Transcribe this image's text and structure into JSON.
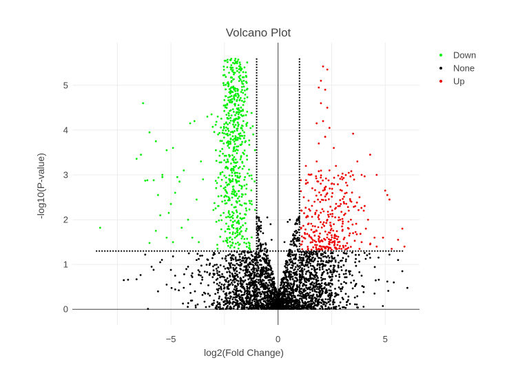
{
  "chart_data": {
    "type": "scatter",
    "title": "Volcano Plot",
    "xlabel": "log2(Fold Change)",
    "ylabel": "-log10(P-value)",
    "xlim": [
      -9.6,
      6.6
    ],
    "ylim": [
      -0.35,
      5.95
    ],
    "xticks": [
      -5,
      0,
      5
    ],
    "xtick_labels": [
      "−5",
      "0",
      "5"
    ],
    "yticks": [
      0,
      1,
      2,
      3,
      4,
      5
    ],
    "ytick_labels": [
      "0",
      "1",
      "2",
      "3",
      "4",
      "5"
    ],
    "grid": true,
    "legend_position": "top-right",
    "thresholds": {
      "fc_low": -1,
      "fc_high": 1,
      "p_line": 1.3
    },
    "series": [
      {
        "name": "Down",
        "color": "#00ee00",
        "points": [
          [
            -8.3,
            1.82
          ],
          [
            -6.3,
            4.6
          ],
          [
            -6.0,
            3.95
          ],
          [
            -5.7,
            3.75
          ],
          [
            -6.6,
            3.36
          ],
          [
            -6.4,
            3.45
          ],
          [
            -6.1,
            2.88
          ],
          [
            -6.2,
            2.87
          ],
          [
            -5.8,
            2.88
          ],
          [
            -5.4,
            3.0
          ],
          [
            -5.2,
            3.55
          ],
          [
            -4.9,
            3.6
          ],
          [
            -5.6,
            2.55
          ],
          [
            -5.5,
            2.1
          ],
          [
            -5.0,
            2.35
          ],
          [
            -4.8,
            2.6
          ],
          [
            -5.2,
            1.6
          ],
          [
            -4.9,
            1.5
          ],
          [
            -4.6,
            2.85
          ],
          [
            -4.4,
            3.1
          ],
          [
            -4.1,
            4.15
          ],
          [
            -3.9,
            4.2
          ],
          [
            -3.6,
            3.3
          ],
          [
            -3.8,
            2.45
          ],
          [
            -4.2,
            2.0
          ],
          [
            -4.7,
            2.95
          ],
          [
            -5.7,
            1.75
          ],
          [
            -6.0,
            1.48
          ],
          [
            -4.0,
            1.6
          ],
          [
            -3.7,
            1.5
          ],
          [
            -4.5,
            1.82
          ],
          [
            -5.1,
            2.15
          ],
          [
            -5.4,
            2.95
          ],
          [
            -3.5,
            2.9
          ],
          [
            -3.3,
            4.3
          ],
          [
            -3.1,
            4.35
          ],
          [
            -2.9,
            3.55
          ]
        ]
      },
      {
        "name": "None",
        "color": "#000000",
        "points": [
          [
            -7.2,
            0.65
          ],
          [
            -7.0,
            0.66
          ],
          [
            -6.6,
            0.67
          ],
          [
            -5.6,
            0.4
          ],
          [
            -5.2,
            0.55
          ],
          [
            -5.0,
            0.88
          ],
          [
            -4.8,
            0.75
          ],
          [
            -4.6,
            0.6
          ],
          [
            -4.4,
            0.48
          ],
          [
            -4.2,
            0.95
          ],
          [
            -4.0,
            0.72
          ],
          [
            -3.8,
            1.1
          ],
          [
            -3.6,
            0.58
          ],
          [
            -3.4,
            0.35
          ],
          [
            -5.9,
            0.95
          ],
          [
            -5.5,
            1.05
          ],
          [
            -4.9,
            1.18
          ],
          [
            -6.2,
            1.22
          ],
          [
            4.3,
            1.15
          ],
          [
            4.7,
            0.66
          ],
          [
            5.1,
            0.62
          ],
          [
            5.4,
            0.6
          ],
          [
            5.8,
            0.85
          ],
          [
            5.6,
            1.1
          ],
          [
            4.5,
            0.35
          ],
          [
            3.9,
            0.75
          ],
          [
            3.6,
            1.05
          ],
          [
            4.0,
            0.5
          ],
          [
            3.2,
            1.25
          ],
          [
            5.2,
            1.22
          ],
          [
            -0.35,
            1.9
          ],
          [
            -0.5,
            2.05
          ],
          [
            -0.7,
            1.7
          ],
          [
            0.45,
            1.95
          ],
          [
            0.55,
            2.0
          ],
          [
            0.7,
            1.65
          ],
          [
            0.3,
            1.5
          ],
          [
            -0.3,
            1.55
          ],
          [
            0.8,
            1.9
          ],
          [
            -0.8,
            1.95
          ]
        ],
        "cloud": {
          "count": 2600,
          "x_sd": 1.55,
          "y_max": 1.3
        }
      },
      {
        "name": "Up",
        "color": "#ee0000",
        "points": [
          [
            2.1,
            5.42
          ],
          [
            2.3,
            5.35
          ],
          [
            2.0,
            5.1
          ],
          [
            1.9,
            4.95
          ],
          [
            2.2,
            4.9
          ],
          [
            2.0,
            4.6
          ],
          [
            2.3,
            4.5
          ],
          [
            2.1,
            4.2
          ],
          [
            1.8,
            4.15
          ],
          [
            2.4,
            4.05
          ],
          [
            2.6,
            3.6
          ],
          [
            2.2,
            3.85
          ],
          [
            1.9,
            3.7
          ],
          [
            3.5,
            3.92
          ],
          [
            3.7,
            3.3
          ],
          [
            3.9,
            3.0
          ],
          [
            4.3,
            3.45
          ],
          [
            4.6,
            3.0
          ],
          [
            5.0,
            2.65
          ],
          [
            5.1,
            2.55
          ],
          [
            5.2,
            2.45
          ],
          [
            5.8,
            1.8
          ],
          [
            5.6,
            1.55
          ],
          [
            5.9,
            1.4
          ],
          [
            4.9,
            1.6
          ],
          [
            4.5,
            1.6
          ],
          [
            4.2,
            2.0
          ],
          [
            4.0,
            2.2
          ],
          [
            3.8,
            2.5
          ],
          [
            3.2,
            2.6
          ],
          [
            3.0,
            2.9
          ],
          [
            3.3,
            2.2
          ],
          [
            2.8,
            2.3
          ],
          [
            2.5,
            2.8
          ],
          [
            2.7,
            3.2
          ],
          [
            1.5,
            3.0
          ],
          [
            1.3,
            2.8
          ],
          [
            1.2,
            2.5
          ],
          [
            1.1,
            2.2
          ],
          [
            1.4,
            1.9
          ],
          [
            1.2,
            1.6
          ],
          [
            1.6,
            1.5
          ],
          [
            2.0,
            1.4
          ],
          [
            2.4,
            1.45
          ],
          [
            2.8,
            1.5
          ],
          [
            3.1,
            1.6
          ],
          [
            3.5,
            1.7
          ],
          [
            3.9,
            1.5
          ],
          [
            4.3,
            1.45
          ],
          [
            1.1,
            1.45
          ],
          [
            1.7,
            2.4
          ],
          [
            1.9,
            2.1
          ],
          [
            2.3,
            2.0
          ],
          [
            2.6,
            1.9
          ],
          [
            1.5,
            2.2
          ],
          [
            2.9,
            2.0
          ],
          [
            3.3,
            1.8
          ],
          [
            1.3,
            3.2
          ],
          [
            1.8,
            3.3
          ],
          [
            2.4,
            3.1
          ],
          [
            1.6,
            2.7
          ],
          [
            2.1,
            2.65
          ],
          [
            3.6,
            2.3
          ],
          [
            4.1,
            1.8
          ],
          [
            2.5,
            1.65
          ],
          [
            1.8,
            1.75
          ],
          [
            2.2,
            1.55
          ],
          [
            3.0,
            1.75
          ],
          [
            3.4,
            2.0
          ],
          [
            1.4,
            1.35
          ],
          [
            1.9,
            1.35
          ],
          [
            2.7,
            1.35
          ],
          [
            3.8,
            1.35
          ],
          [
            4.6,
            1.4
          ],
          [
            5.3,
            1.35
          ]
        ],
        "cloud": {
          "count": 260,
          "x_mean": 2.3,
          "x_sd": 0.85,
          "y_min": 1.33,
          "y_max": 3.1
        }
      }
    ],
    "down_cloud": {
      "count": 620,
      "x_mean": -2.05,
      "x_sd": 0.38,
      "y_min": 1.33,
      "y_max": 5.6
    }
  }
}
